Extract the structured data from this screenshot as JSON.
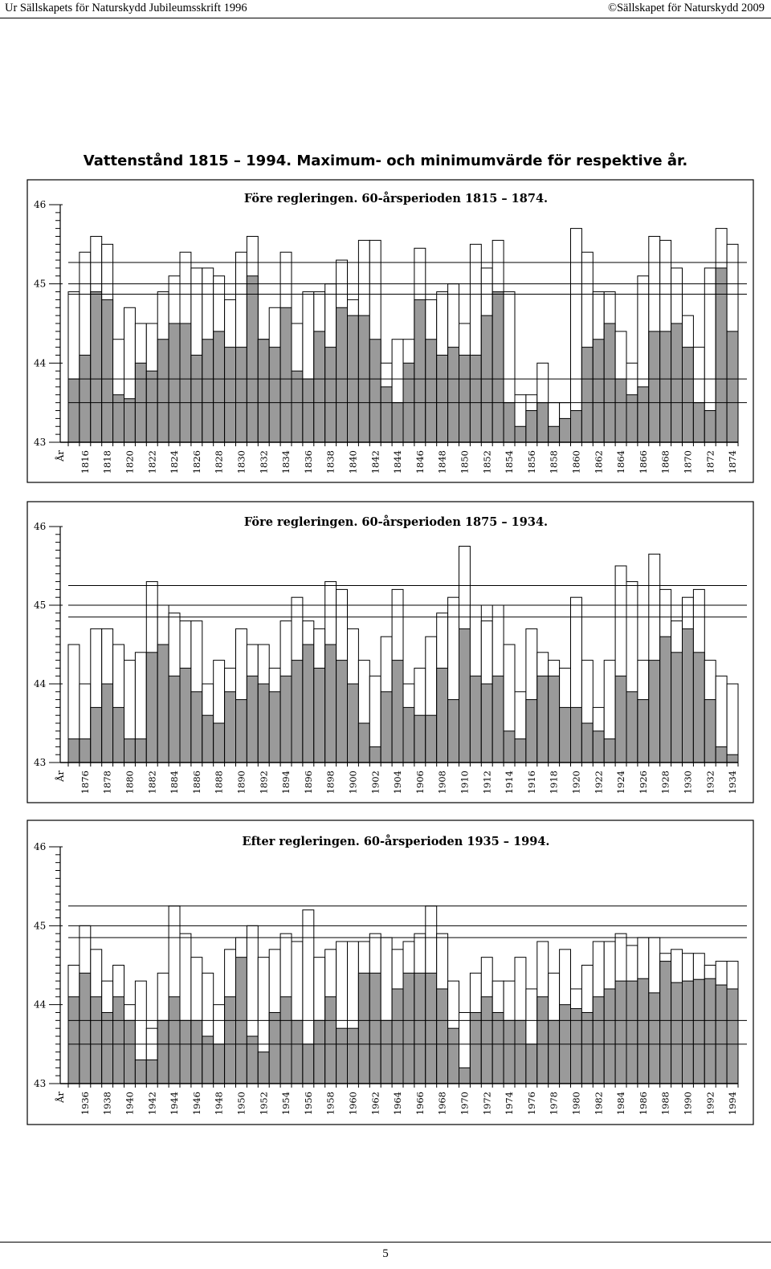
{
  "header": {
    "left": "Ur Sällskapets för Naturskydd Jubileumsskrift 1996",
    "right": "©Sällskapet för Naturskydd 2009"
  },
  "title": "Vattenstånd 1815 – 1994. Maximum- och minimumvärde för respektive år.",
  "colors": {
    "min_fill": "#9a9a9a",
    "max_fill": "#ffffff",
    "line": "#000000"
  },
  "chart_data": [
    {
      "type": "bar",
      "title": "Före regleringen. 60-årsperioden 1815 – 1874.",
      "xlabel": "År",
      "ylim": [
        43,
        46
      ],
      "yticks": [
        "43",
        "44",
        "45",
        "46"
      ],
      "reference_lines": [
        45.27,
        45.0,
        44.87,
        43.8,
        43.5
      ],
      "year_start": 1815,
      "tick_labels": [
        "1816",
        "1818",
        "1820",
        "1822",
        "1824",
        "1826",
        "1828",
        "1830",
        "1832",
        "1834",
        "1836",
        "1838",
        "1840",
        "1842",
        "1844",
        "1846",
        "1848",
        "1850",
        "1852",
        "1854",
        "1856",
        "1858",
        "1860",
        "1862",
        "1864",
        "1866",
        "1868",
        "1870",
        "1872",
        "1874"
      ],
      "series": [
        {
          "name": "Max",
          "values": [
            44.9,
            45.4,
            45.6,
            45.5,
            44.3,
            44.7,
            44.5,
            44.5,
            44.9,
            45.1,
            45.4,
            45.2,
            45.2,
            45.1,
            44.8,
            45.4,
            45.6,
            44.3,
            44.7,
            45.4,
            44.5,
            44.9,
            44.9,
            45.0,
            45.3,
            44.8,
            45.55,
            45.55,
            44.0,
            44.3,
            44.3,
            45.45,
            44.8,
            44.9,
            45.0,
            44.5,
            45.5,
            45.2,
            45.55,
            44.9,
            43.6,
            43.6,
            44.0,
            43.5,
            43.5,
            45.7,
            45.4,
            44.9,
            44.9,
            44.4,
            44.0,
            45.1,
            45.6,
            45.55,
            45.2,
            44.6,
            44.2,
            45.2,
            45.7,
            45.5
          ]
        },
        {
          "name": "Min",
          "values": [
            43.8,
            44.1,
            44.9,
            44.8,
            43.6,
            43.55,
            44.0,
            43.9,
            44.3,
            44.5,
            44.5,
            44.1,
            44.3,
            44.4,
            44.2,
            44.2,
            45.1,
            44.3,
            44.2,
            44.7,
            43.9,
            43.8,
            44.4,
            44.2,
            44.7,
            44.6,
            44.6,
            44.3,
            43.7,
            43.5,
            44.0,
            44.8,
            44.3,
            44.1,
            44.2,
            44.1,
            44.1,
            44.6,
            44.9,
            43.5,
            43.2,
            43.4,
            43.5,
            43.2,
            43.3,
            43.4,
            44.2,
            44.3,
            44.5,
            43.8,
            43.6,
            43.7,
            44.4,
            44.4,
            44.5,
            44.2,
            43.5,
            43.4,
            45.2,
            44.4
          ]
        }
      ]
    },
    {
      "type": "bar",
      "title": "Före regleringen. 60-årsperioden 1875 – 1934.",
      "xlabel": "År",
      "ylim": [
        43,
        46
      ],
      "yticks": [
        "43",
        "44",
        "45",
        "46"
      ],
      "reference_lines": [
        45.25,
        45.0,
        44.85
      ],
      "year_start": 1875,
      "tick_labels": [
        "1876",
        "1878",
        "1880",
        "1882",
        "1884",
        "1886",
        "1888",
        "1890",
        "1892",
        "1894",
        "1896",
        "1898",
        "1900",
        "1902",
        "1904",
        "1906",
        "1908",
        "1910",
        "1912",
        "1914",
        "1916",
        "1918",
        "1920",
        "1922",
        "1924",
        "1926",
        "1928",
        "1930",
        "1932",
        "1934"
      ],
      "series": [
        {
          "name": "Max",
          "values": [
            44.5,
            44.0,
            44.7,
            44.7,
            44.5,
            44.3,
            44.4,
            45.3,
            45.0,
            44.9,
            44.8,
            44.8,
            44.0,
            44.3,
            44.2,
            44.7,
            44.5,
            44.5,
            44.2,
            44.8,
            45.1,
            44.8,
            44.7,
            45.3,
            45.2,
            44.7,
            44.3,
            44.1,
            44.6,
            45.2,
            44.0,
            44.2,
            44.6,
            44.9,
            45.1,
            45.75,
            45.0,
            44.8,
            45.0,
            44.5,
            43.9,
            44.7,
            44.4,
            44.3,
            44.2,
            45.1,
            44.3,
            43.7,
            44.3,
            45.5,
            45.3,
            44.3,
            45.65,
            45.2,
            44.8,
            45.1,
            45.2,
            44.3,
            44.1,
            44.0
          ]
        },
        {
          "name": "Min",
          "values": [
            43.3,
            43.3,
            43.7,
            44.0,
            43.7,
            43.3,
            43.3,
            44.4,
            44.5,
            44.1,
            44.2,
            43.9,
            43.6,
            43.5,
            43.9,
            43.8,
            44.1,
            44.0,
            43.9,
            44.1,
            44.3,
            44.5,
            44.2,
            44.5,
            44.3,
            44.0,
            43.5,
            43.2,
            43.9,
            44.3,
            43.7,
            43.6,
            43.6,
            44.2,
            43.8,
            44.7,
            44.1,
            44.0,
            44.1,
            43.4,
            43.3,
            43.8,
            44.1,
            44.1,
            43.7,
            43.7,
            43.5,
            43.4,
            43.3,
            44.1,
            43.9,
            43.8,
            44.3,
            44.6,
            44.4,
            44.7,
            44.4,
            43.8,
            43.2,
            43.1
          ]
        }
      ]
    },
    {
      "type": "bar",
      "title": "Efter regleringen. 60-årsperioden 1935 – 1994.",
      "xlabel": "År",
      "ylim": [
        43,
        46
      ],
      "yticks": [
        "43",
        "44",
        "45",
        "46"
      ],
      "reference_lines": [
        45.25,
        45.0,
        44.85,
        43.8,
        43.5
      ],
      "year_start": 1935,
      "tick_labels": [
        "1936",
        "1938",
        "1940",
        "1942",
        "1944",
        "1946",
        "1948",
        "1950",
        "1952",
        "1954",
        "1956",
        "1958",
        "1960",
        "1962",
        "1964",
        "1966",
        "1968",
        "1970",
        "1972",
        "1974",
        "1976",
        "1978",
        "1980",
        "1982",
        "1984",
        "1986",
        "1988",
        "1990",
        "1992",
        "1994"
      ],
      "series": [
        {
          "name": "Max",
          "values": [
            44.5,
            45.0,
            44.7,
            44.3,
            44.5,
            44.0,
            44.3,
            43.7,
            44.4,
            45.25,
            44.9,
            44.6,
            44.4,
            44.0,
            44.7,
            44.85,
            45.0,
            44.6,
            44.7,
            44.9,
            44.8,
            45.2,
            44.6,
            44.7,
            44.8,
            44.8,
            44.8,
            44.9,
            44.85,
            44.7,
            44.8,
            44.9,
            45.25,
            44.9,
            44.3,
            43.9,
            44.4,
            44.6,
            44.3,
            44.3,
            44.6,
            44.2,
            44.8,
            44.4,
            44.7,
            44.2,
            44.5,
            44.8,
            44.8,
            44.9,
            44.75,
            44.85,
            44.85,
            44.65,
            44.7,
            44.65,
            44.65,
            44.5,
            44.55,
            44.55
          ]
        },
        {
          "name": "Min",
          "values": [
            44.1,
            44.4,
            44.1,
            43.9,
            44.1,
            43.8,
            43.3,
            43.3,
            43.8,
            44.1,
            43.8,
            43.8,
            43.6,
            43.5,
            44.1,
            44.6,
            43.6,
            43.4,
            43.9,
            44.1,
            43.8,
            43.5,
            43.8,
            44.1,
            43.7,
            43.7,
            44.4,
            44.4,
            43.8,
            44.2,
            44.4,
            44.4,
            44.4,
            44.2,
            43.7,
            43.2,
            43.9,
            44.1,
            43.9,
            43.8,
            43.8,
            43.5,
            44.1,
            43.8,
            44.0,
            43.95,
            43.9,
            44.1,
            44.2,
            44.3,
            44.3,
            44.33,
            44.15,
            44.55,
            44.28,
            44.3,
            44.32,
            44.33,
            44.25,
            44.2
          ]
        }
      ]
    }
  ],
  "footer": {
    "page_number": "5"
  }
}
